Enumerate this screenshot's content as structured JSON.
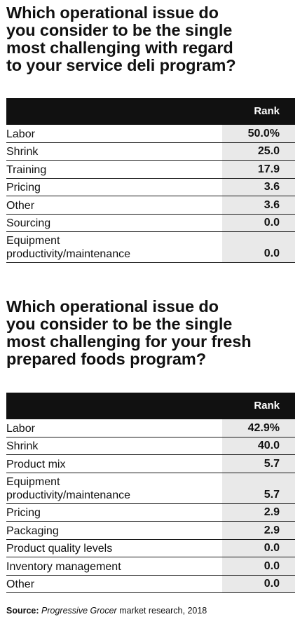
{
  "chart_data": [
    {
      "type": "table",
      "title": "Which operational issue do you consider to be the single most challenging with regard to your service deli program?",
      "title_lines": [
        "Which operational issue do",
        "you consider to be the single",
        "most challenging with regard",
        "to your service deli program?"
      ],
      "column_header": "Rank",
      "rows": [
        {
          "label": [
            "Labor"
          ],
          "value": 50.0,
          "display": "50.0%"
        },
        {
          "label": [
            "Shrink"
          ],
          "value": 25.0,
          "display": "25.0"
        },
        {
          "label": [
            "Training"
          ],
          "value": 17.9,
          "display": "17.9"
        },
        {
          "label": [
            "Pricing"
          ],
          "value": 3.6,
          "display": "3.6"
        },
        {
          "label": [
            "Other"
          ],
          "value": 3.6,
          "display": "3.6"
        },
        {
          "label": [
            "Sourcing"
          ],
          "value": 0.0,
          "display": "0.0"
        },
        {
          "label": [
            "Equipment",
            "productivity/maintenance"
          ],
          "value": 0.0,
          "display": "0.0"
        }
      ]
    },
    {
      "type": "table",
      "title": "Which operational issue do you consider to be the single most challenging for your fresh prepared foods program?",
      "title_lines": [
        "Which operational issue do",
        "you consider to be the single",
        "most challenging for your fresh",
        "prepared foods program?"
      ],
      "column_header": "Rank",
      "rows": [
        {
          "label": [
            "Labor"
          ],
          "value": 42.9,
          "display": "42.9%"
        },
        {
          "label": [
            "Shrink"
          ],
          "value": 40.0,
          "display": "40.0"
        },
        {
          "label": [
            "Product mix"
          ],
          "value": 5.7,
          "display": "5.7"
        },
        {
          "label": [
            "Equipment",
            "productivity/maintenance"
          ],
          "value": 5.7,
          "display": "5.7"
        },
        {
          "label": [
            "Pricing"
          ],
          "value": 2.9,
          "display": "2.9"
        },
        {
          "label": [
            "Packaging"
          ],
          "value": 2.9,
          "display": "2.9"
        },
        {
          "label": [
            "Product quality levels"
          ],
          "value": 0.0,
          "display": "0.0"
        },
        {
          "label": [
            "Inventory management"
          ],
          "value": 0.0,
          "display": "0.0"
        },
        {
          "label": [
            "Other"
          ],
          "value": 0.0,
          "display": "0.0"
        }
      ]
    }
  ],
  "source": {
    "label": "Source:",
    "publication": "Progressive Grocer",
    "text": " market research, 2018"
  },
  "colors": {
    "header_bg": "#111111",
    "value_cell_bg": "#e9e9e9",
    "text": "#111111"
  }
}
